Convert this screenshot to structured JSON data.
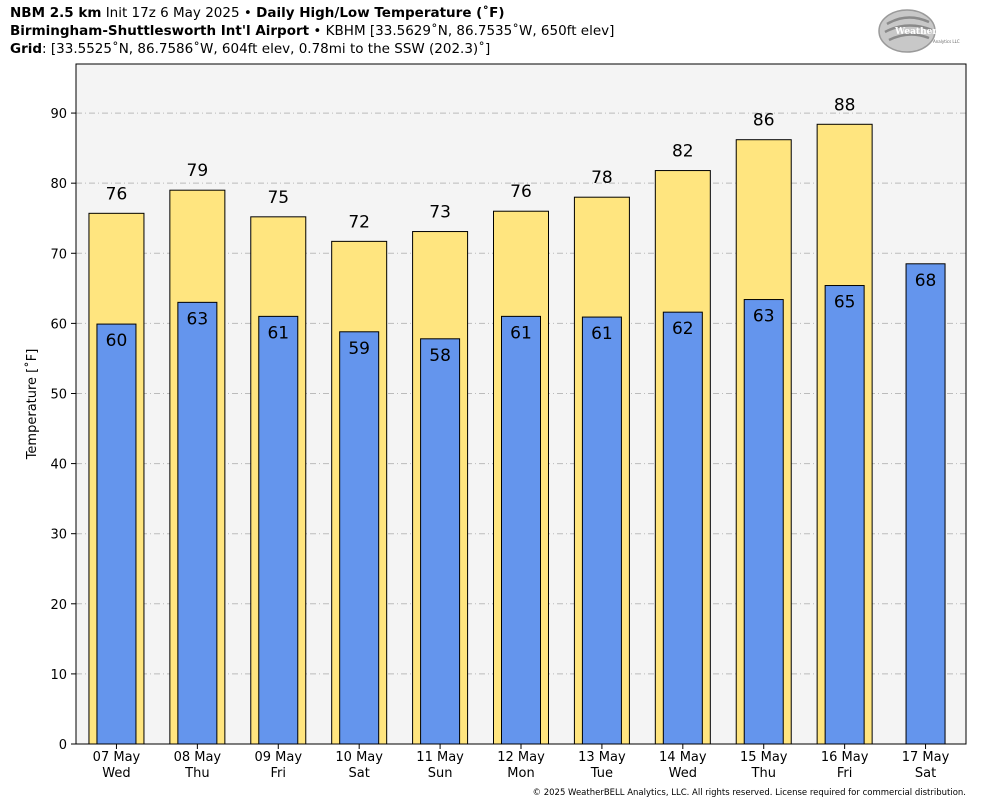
{
  "header": {
    "line1_model": "NBM 2.5 km",
    "line1_init": "Init 17z 6 May 2025",
    "line1_sep": "•",
    "line1_product": "Daily High/Low Temperature (˚F)",
    "line2_station": "Birmingham-Shuttlesworth Int'l Airport",
    "line2_sep": "•",
    "line2_details": "KBHM [33.5629˚N, 86.7535˚W, 650ft elev]",
    "line3_label": "Grid",
    "line3_details": ": [33.5525˚N, 86.7586˚W, 604ft elev, 0.78mi to the SSW (202.3)˚]"
  },
  "logo": {
    "text_big": "WeatherBELL",
    "text_small": "Analytics LLC"
  },
  "copyright": "© 2025 WeatherBELL Analytics, LLC. All rights reserved. License required for commercial distribution.",
  "colors": {
    "high": "#FFE57F",
    "low": "#6495ED",
    "plot_bg": "#F4F4F4",
    "grid": "#BBBBBB"
  },
  "chart_data": {
    "type": "bar",
    "ylabel": "Temperature [˚F]",
    "ylim": [
      0,
      97
    ],
    "yticks": [
      0,
      10,
      20,
      30,
      40,
      50,
      60,
      70,
      80,
      90
    ],
    "grid": true,
    "categories": [
      [
        "07 May",
        "Wed"
      ],
      [
        "08 May",
        "Thu"
      ],
      [
        "09 May",
        "Fri"
      ],
      [
        "10 May",
        "Sat"
      ],
      [
        "11 May",
        "Sun"
      ],
      [
        "12 May",
        "Mon"
      ],
      [
        "13 May",
        "Tue"
      ],
      [
        "14 May",
        "Wed"
      ],
      [
        "15 May",
        "Thu"
      ],
      [
        "16 May",
        "Fri"
      ],
      [
        "17 May",
        "Sat"
      ]
    ],
    "series": [
      {
        "name": "High",
        "values": [
          75.7,
          79.0,
          75.2,
          71.7,
          73.1,
          76.0,
          78.0,
          81.8,
          86.2,
          88.4,
          null
        ],
        "labels": [
          "76",
          "79",
          "75",
          "72",
          "73",
          "76",
          "78",
          "82",
          "86",
          "88",
          null
        ]
      },
      {
        "name": "Low",
        "values": [
          59.9,
          63.0,
          61.0,
          58.8,
          57.8,
          61.0,
          60.9,
          61.6,
          63.4,
          65.4,
          68.5
        ],
        "labels": [
          "60",
          "63",
          "61",
          "59",
          "58",
          "61",
          "61",
          "62",
          "63",
          "65",
          "68"
        ]
      }
    ]
  }
}
